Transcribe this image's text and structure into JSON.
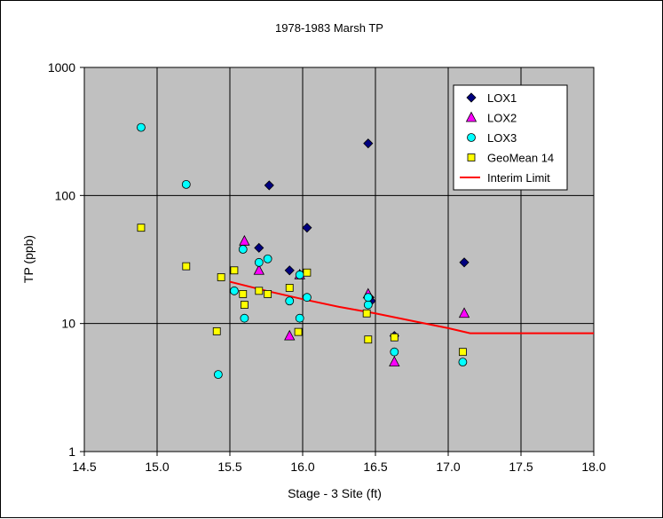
{
  "chart_data": {
    "type": "scatter",
    "title": "1978-1983 Marsh TP",
    "xlabel": "Stage - 3 Site (ft)",
    "ylabel": "TP (ppb)",
    "xlim": [
      14.5,
      18.0
    ],
    "ylim": [
      1,
      1000
    ],
    "yscale": "log",
    "grid": true,
    "legend_position": "top-right",
    "plot_background": "#c0c0c0",
    "x_ticks": [
      "14.5",
      "15.0",
      "15.5",
      "16.0",
      "16.5",
      "17.0",
      "17.5",
      "18.0"
    ],
    "x_tick_values": [
      14.5,
      15.0,
      15.5,
      16.0,
      16.5,
      17.0,
      17.5,
      18.0
    ],
    "y_ticks": [
      "1",
      "10",
      "100",
      "1000"
    ],
    "y_tick_values": [
      1,
      10,
      100,
      1000
    ],
    "series": [
      {
        "name": "LOX1",
        "marker": "diamond",
        "color": "#000080",
        "points": [
          [
            15.7,
            39
          ],
          [
            15.77,
            120
          ],
          [
            15.91,
            26
          ],
          [
            16.03,
            56
          ],
          [
            16.45,
            255
          ],
          [
            16.46,
            16
          ],
          [
            16.47,
            15
          ],
          [
            16.63,
            8
          ],
          [
            17.11,
            30
          ]
        ]
      },
      {
        "name": "LOX2",
        "marker": "triangle",
        "color": "#ff00ff",
        "points": [
          [
            15.6,
            44
          ],
          [
            15.7,
            26
          ],
          [
            15.91,
            8
          ],
          [
            15.98,
            24
          ],
          [
            16.45,
            17
          ],
          [
            16.63,
            5
          ],
          [
            17.11,
            12
          ]
        ]
      },
      {
        "name": "LOX3",
        "marker": "circle",
        "color": "#00ffff",
        "points": [
          [
            14.89,
            340
          ],
          [
            15.2,
            122
          ],
          [
            15.42,
            4
          ],
          [
            15.53,
            18
          ],
          [
            15.59,
            38
          ],
          [
            15.6,
            11
          ],
          [
            15.7,
            30
          ],
          [
            15.76,
            32
          ],
          [
            15.91,
            15
          ],
          [
            15.98,
            11
          ],
          [
            15.98,
            24
          ],
          [
            16.03,
            16
          ],
          [
            16.45,
            14
          ],
          [
            16.45,
            16
          ],
          [
            16.63,
            6
          ],
          [
            17.1,
            5
          ]
        ]
      },
      {
        "name": "GeoMean 14",
        "marker": "square",
        "color": "#ffff00",
        "points": [
          [
            14.89,
            56
          ],
          [
            15.2,
            28
          ],
          [
            15.41,
            8.7
          ],
          [
            15.44,
            23
          ],
          [
            15.53,
            26
          ],
          [
            15.59,
            17
          ],
          [
            15.6,
            14
          ],
          [
            15.7,
            18
          ],
          [
            15.76,
            17
          ],
          [
            15.91,
            19
          ],
          [
            15.97,
            8.6
          ],
          [
            16.03,
            25
          ],
          [
            16.44,
            12
          ],
          [
            16.45,
            7.5
          ],
          [
            16.63,
            7.8
          ],
          [
            17.1,
            6
          ]
        ]
      },
      {
        "name": "Interim Limit",
        "marker": "line",
        "color": "#ff0000",
        "points": [
          [
            15.5,
            21.2
          ],
          [
            15.75,
            18.0
          ],
          [
            16.0,
            15.5
          ],
          [
            16.25,
            13.5
          ],
          [
            16.5,
            12.0
          ],
          [
            16.75,
            10.5
          ],
          [
            17.0,
            9.2
          ],
          [
            17.15,
            8.4
          ],
          [
            18.0,
            8.4
          ]
        ]
      }
    ]
  }
}
